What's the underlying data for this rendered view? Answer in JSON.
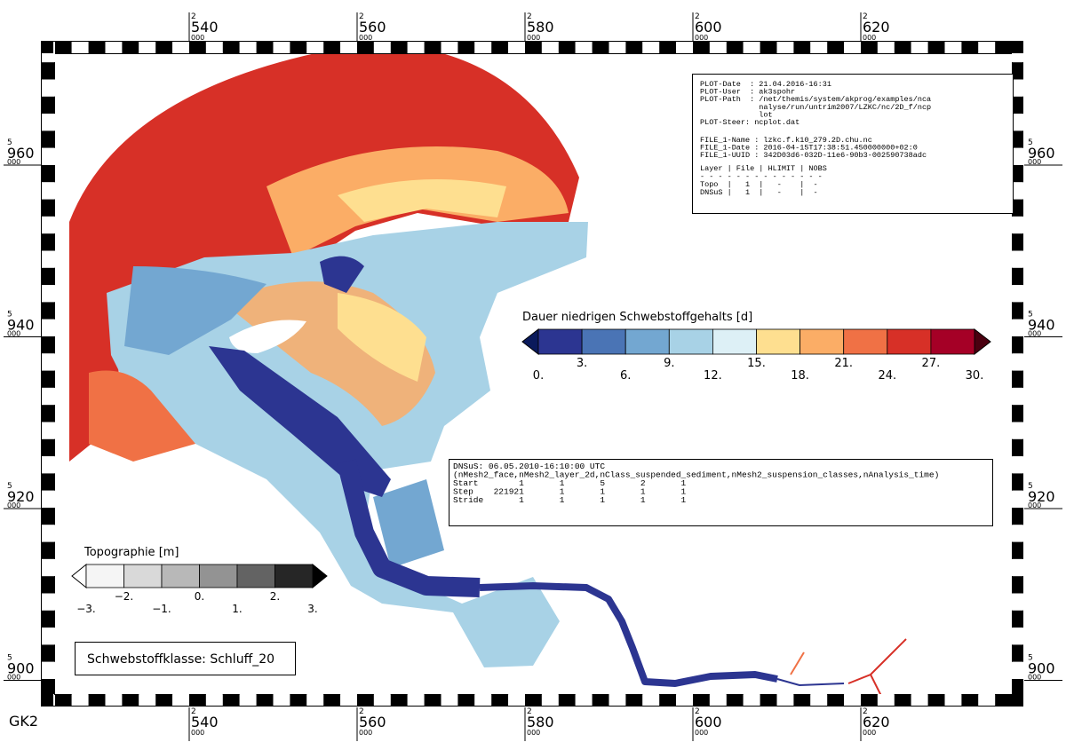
{
  "projection": "GK2",
  "grid_labels": {
    "x": [
      {
        "upper": "2",
        "main": "540",
        "lower": "000"
      },
      {
        "upper": "2",
        "main": "560",
        "lower": "000"
      },
      {
        "upper": "2",
        "main": "580",
        "lower": "000"
      },
      {
        "upper": "2",
        "main": "600",
        "lower": "000"
      },
      {
        "upper": "2",
        "main": "620",
        "lower": "000"
      }
    ],
    "y": [
      {
        "upper": "5",
        "main": "960",
        "lower": "000"
      },
      {
        "upper": "5",
        "main": "940",
        "lower": "000"
      },
      {
        "upper": "5",
        "main": "920",
        "lower": "000"
      },
      {
        "upper": "5",
        "main": "900",
        "lower": "000"
      }
    ]
  },
  "info_box": {
    "plot_lines": [
      "PLOT-Date  : 21.04.2016-16:31",
      "PLOT-User  : ak3spohr",
      "PLOT-Path  : /net/themis/system/akprog/examples/nca",
      "             nalyse/run/untrim2007/LZKC/nc/2D_f/ncp",
      "             lot",
      "PLOT-Steer: ncplot.dat"
    ],
    "file_lines": [
      "FILE_1-Name : lzkc.f.k10_279.2D.chu.nc",
      "FILE_1-Date : 2016-04-15T17:38:51.450000000+02:0",
      "FILE_1-UUID : 342D03d6-032D-11e6-90b3-002590738adc"
    ],
    "table_lines": [
      "Layer | File | HLIMIT | NOBS",
      "- - - - - - - - - - - - - -",
      "Topo  |   1  |   -    |  -",
      "DNSuS |   1  |   -    |  -"
    ]
  },
  "time_box": {
    "lines": [
      "DNSuS: 06.05.2010-16:10:00 UTC",
      "(nMesh2_face,nMesh2_layer_2d,nClass_suspended_sediment,nMesh2_suspension_classes,nAnalysis_time)",
      "Start        1       1       5       2       1",
      "Step    221921       1       1       1       1",
      "Stride       1       1       1       1       1"
    ]
  },
  "colorbar_main": {
    "title": "Dauer niedrigen Schwebstoffgehalts [d]",
    "under_color": "#0a1a5c",
    "over_color": "#4a0010",
    "colors": [
      "#2c3591",
      "#4a74b5",
      "#73a7d1",
      "#a8d2e6",
      "#ddf0f6",
      "#fedf90",
      "#fbad66",
      "#f07145",
      "#d73027",
      "#a50026"
    ],
    "labels": [
      "0.",
      "3.",
      "6.",
      "9.",
      "12.",
      "15.",
      "18.",
      "21.",
      "24.",
      "27.",
      "30."
    ]
  },
  "colorbar_topo": {
    "title": "Topographie [m]",
    "under_color": "#ffffff",
    "over_color": "#000000",
    "colors": [
      "#f5f5f5",
      "#d9d9d9",
      "#b8b8b8",
      "#939393",
      "#636363",
      "#262626"
    ],
    "labels": [
      "−3.",
      "−2.",
      "−1.",
      "0.",
      "1.",
      "2.",
      "3."
    ]
  },
  "class_label": "Schwebstoffklasse: Schluff_20"
}
